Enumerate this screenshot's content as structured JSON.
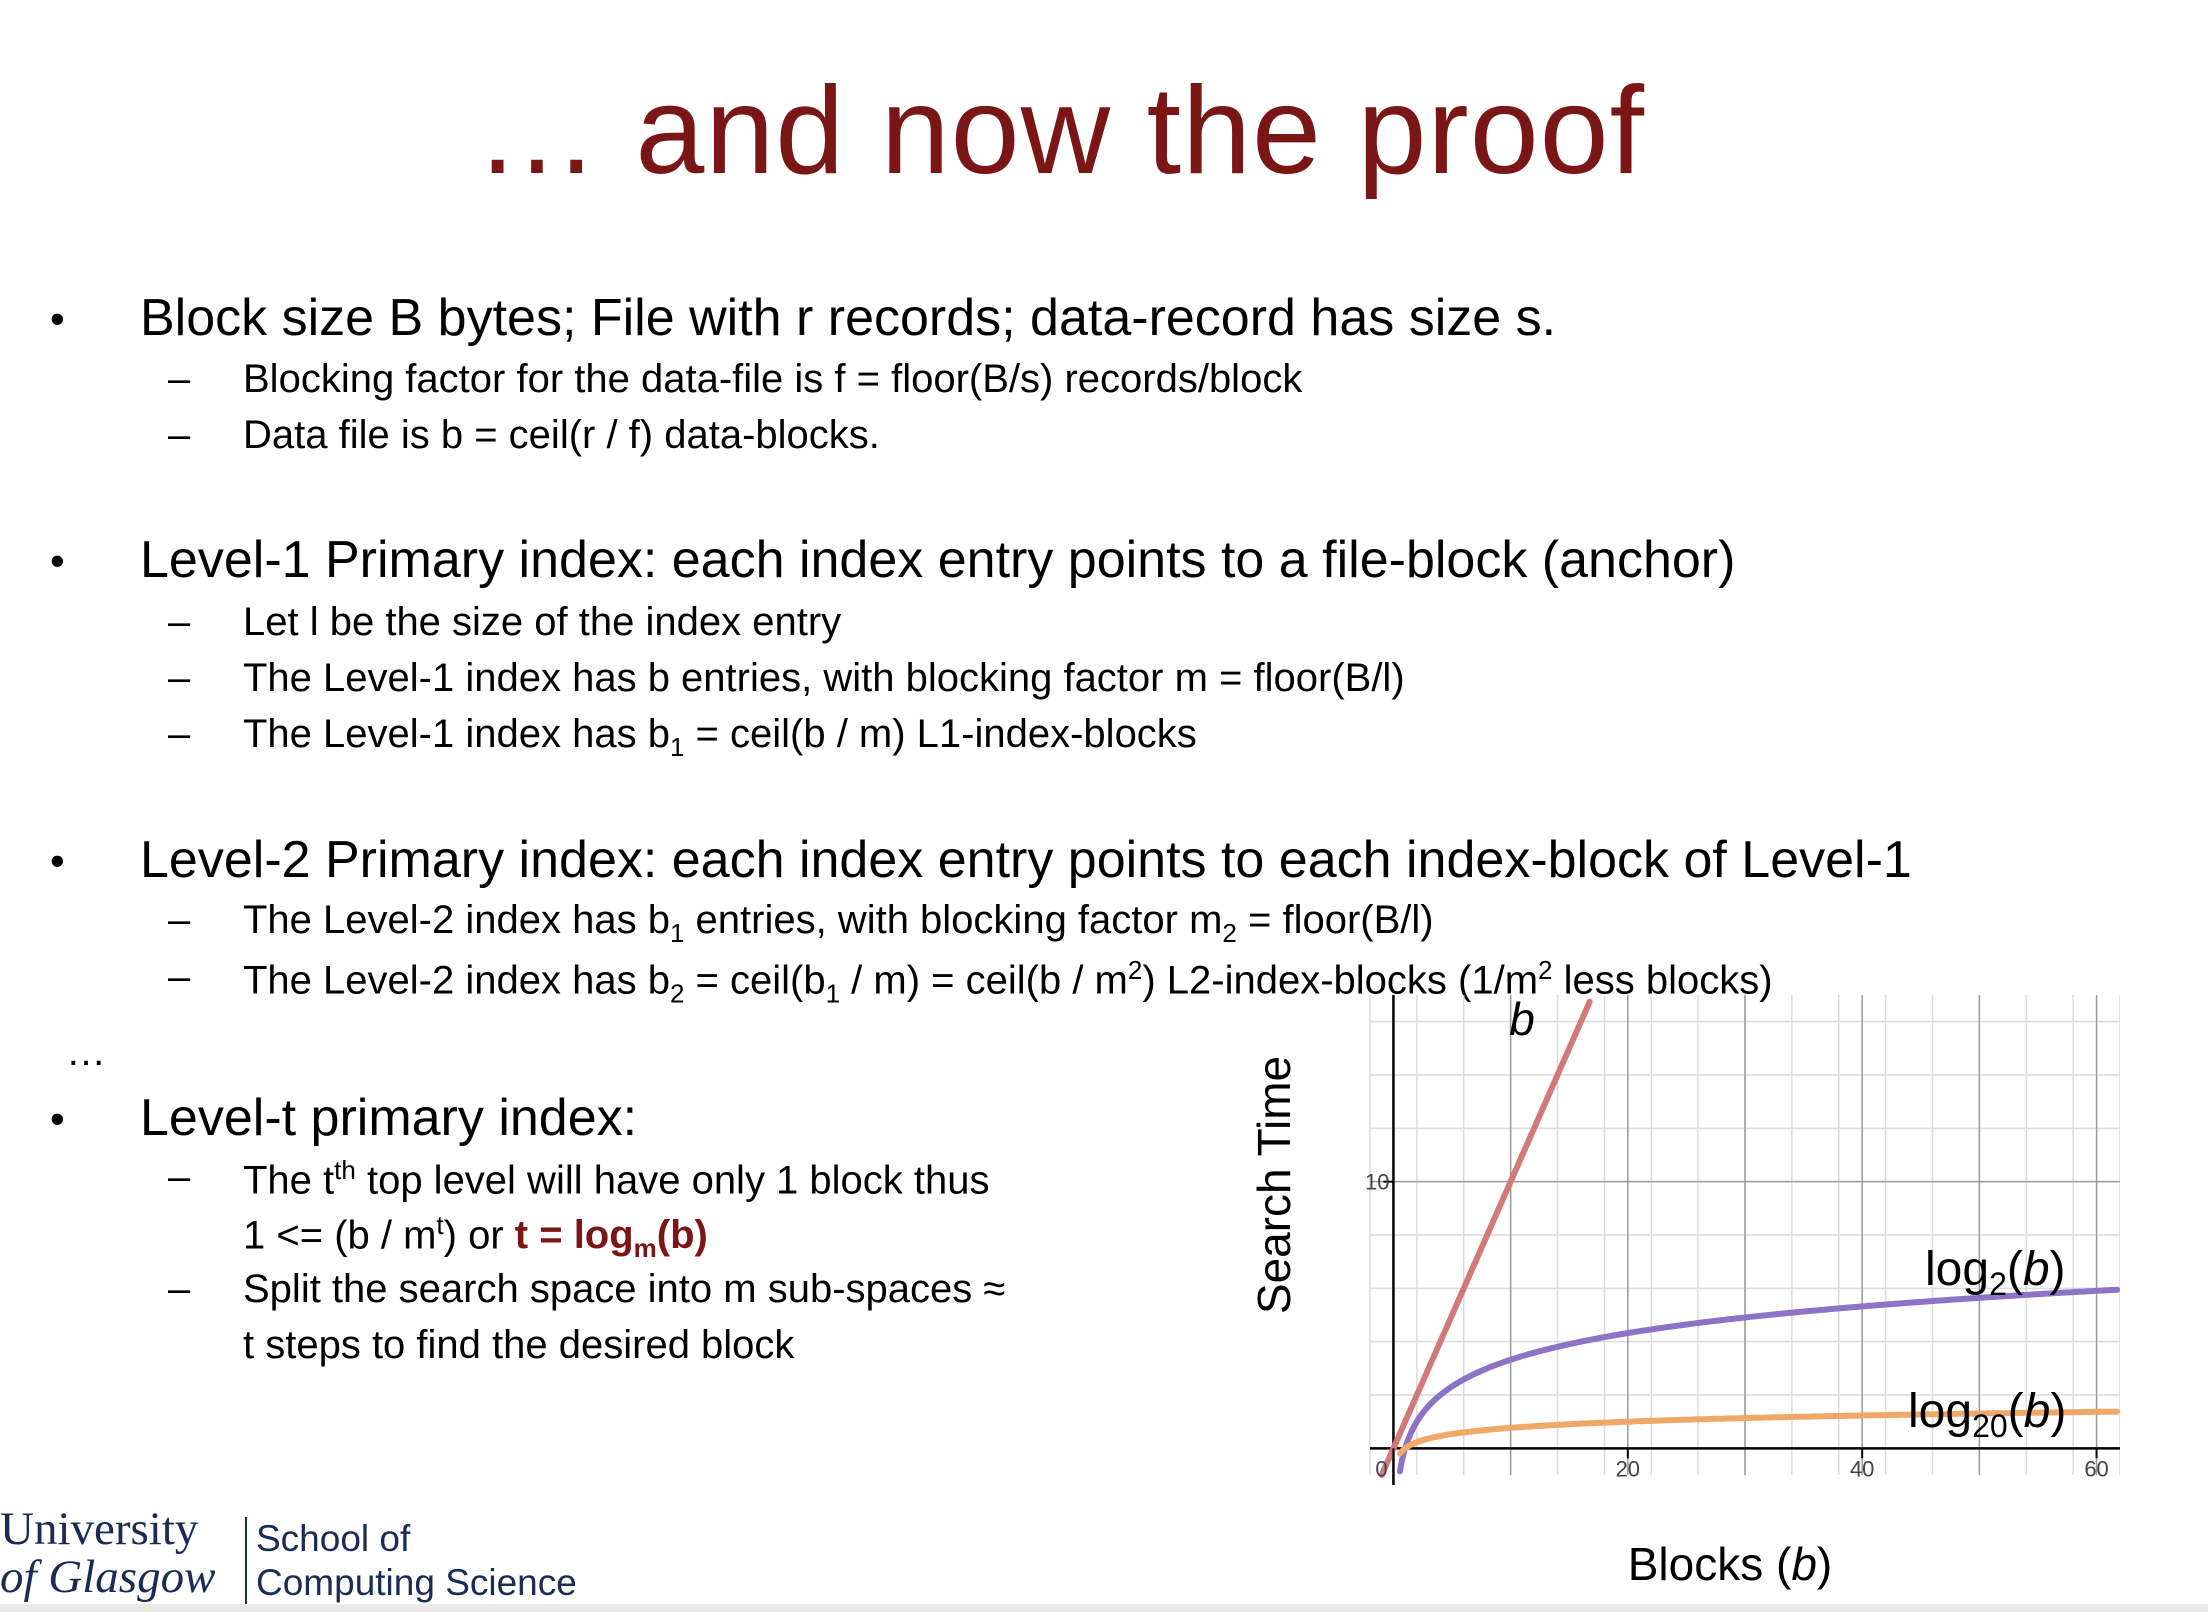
{
  "slide": {
    "title": "… and now the proof",
    "bullets": [
      {
        "text": "Block size B bytes; File with r records; data-record has size s.",
        "subs": [
          "Blocking factor for the data-file is f = floor(B/s) records/block",
          "Data file is b = ceil(r / f) data-blocks."
        ]
      },
      {
        "text": "Level-1 Primary index: each index entry points to a file-block (anchor)",
        "subs": [
          "Let l be the size of the index entry",
          "The Level-1 index has b entries, with blocking factor m = floor(B/l)"
        ],
        "sub3": {
          "pre": "The Level-1 index has b",
          "sub": "1",
          "post": " = ceil(b / m) L1-index-blocks"
        }
      },
      {
        "text": "Level-2 Primary index: each index entry points to each index-block of Level-1",
        "sub1": {
          "a": "The Level-2 index has b",
          "s1": "1",
          "b": " entries, with blocking factor m",
          "s2": "2",
          "c": " = floor(B/l)"
        },
        "sub2": {
          "a": "The Level-2 index has b",
          "s1": "2",
          "b": " = ceil(b",
          "s2": "1",
          "c": " / m) = ceil(b / m",
          "p1": "2",
          "d": ") L2-index-blocks (1/m",
          "p2": "2",
          "e": " less blocks)"
        }
      },
      {
        "text": "Level-t primary index:",
        "sub1": {
          "a": "The t",
          "sup": "th",
          "b": " top level will have only 1 block thus"
        },
        "sub1b": {
          "a": "1 <= (b / m",
          "sup": "t",
          "b": ") or ",
          "hl_a": "t = log",
          "hl_sub": "m",
          "hl_b": "(b)"
        },
        "sub2": {
          "a": "Split the search space into m sub-spaces ≈",
          "b": "t steps to find the desired block"
        }
      }
    ],
    "ellipsis": "…",
    "dash": "–",
    "bullet_symbol": "•"
  },
  "chart_data": {
    "type": "line",
    "xlabel": "Blocks (b)",
    "ylabel": "Search Time",
    "xlim": [
      -2,
      62
    ],
    "ylim": [
      -1,
      17
    ],
    "x_ticks": [
      0,
      20,
      40,
      60
    ],
    "x_tick_labels": [
      "0",
      "20",
      "40",
      "60"
    ],
    "y_ticks": [
      10
    ],
    "y_tick_labels": [
      "10"
    ],
    "grid": true,
    "series": [
      {
        "name": "b",
        "color": "#d27a7a",
        "func": "linear"
      },
      {
        "name": "log2(b)",
        "color": "#8e72c6",
        "func": "log2"
      },
      {
        "name": "log20(b)",
        "color": "#f0a868",
        "func": "log20"
      }
    ],
    "labels": {
      "b": "b",
      "log2_pre": "log",
      "log2_sub": "2",
      "log2_post": "(b)",
      "log20_pre": "log",
      "log20_sub": "20",
      "log20_post": "(b)"
    }
  },
  "logo": {
    "line1": "University",
    "line2": "of Glasgow",
    "school1": "School of",
    "school2": "Computing Science"
  }
}
